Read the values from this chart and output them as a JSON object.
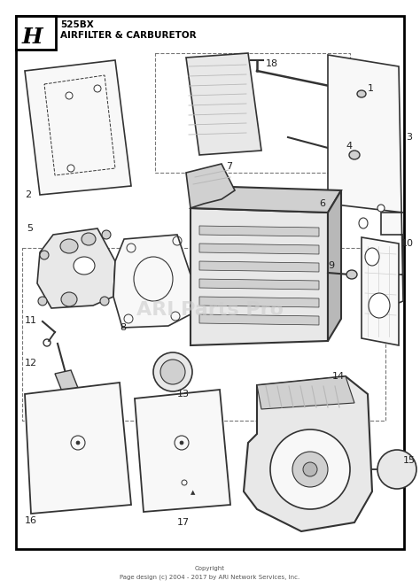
{
  "title_line1": "525BX",
  "title_line2": "AIRFILTER & CARBURETOR",
  "section_label": "H",
  "background_color": "#ffffff",
  "border_color": "#000000",
  "line_color": "#333333",
  "fill_light": "#f0f0f0",
  "fill_mid": "#d8d8d8",
  "fill_dark": "#b0b0b0",
  "watermark_text": "ARI Parts Pro",
  "watermark_color": "#cccccc",
  "copyright_line1": "Copyright",
  "copyright_line2": "Page design (c) 2004 - 2017 by ARI Network Services, Inc.",
  "fig_width": 4.74,
  "fig_height": 6.64,
  "dpi": 100
}
